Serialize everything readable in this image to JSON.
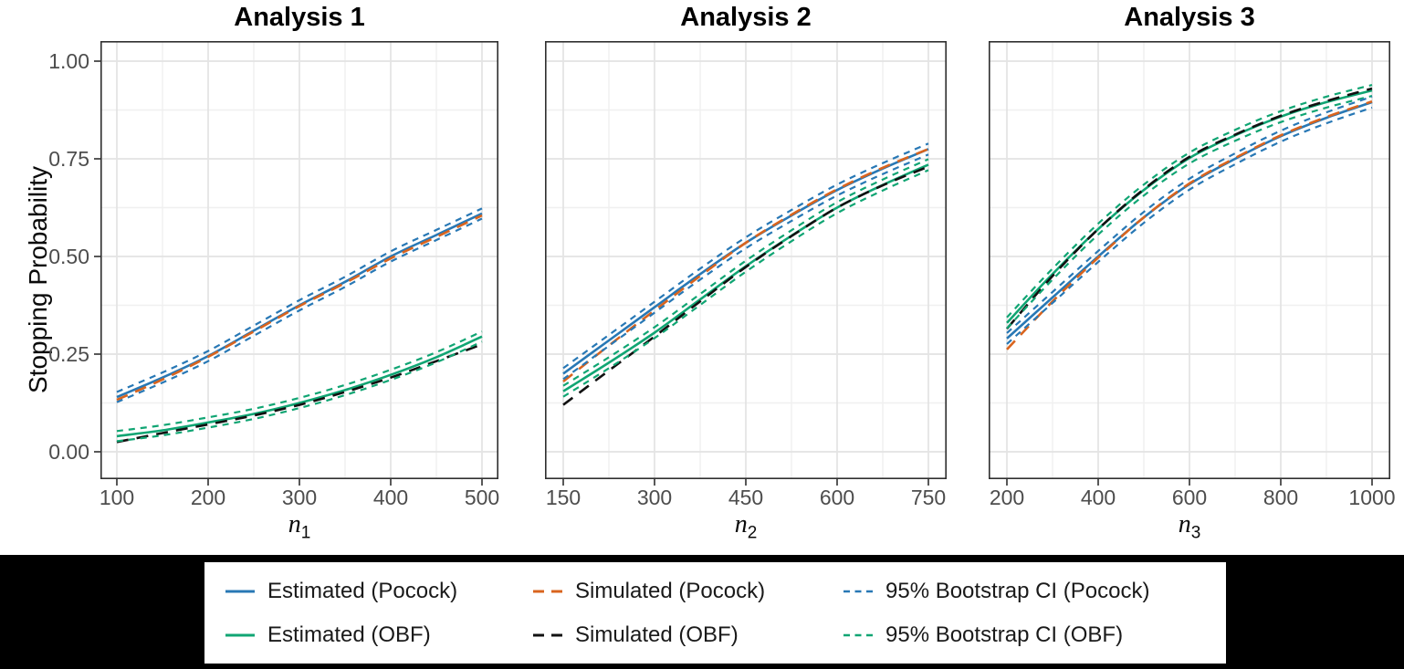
{
  "figure": {
    "background": "#ffffff",
    "footer_background": "#000000",
    "y_axis": {
      "label": "Stopping Probability",
      "ticks": [
        "1.00",
        "0.75",
        "0.50",
        "0.25",
        "0.00"
      ],
      "tick_values": [
        1.0,
        0.75,
        0.5,
        0.25,
        0.0
      ],
      "range": [
        0,
        1
      ]
    }
  },
  "colors": {
    "blue": "#2878b5",
    "orange": "#d9641e",
    "green": "#10a573",
    "black": "#111111",
    "grid_major": "#e3e3e3",
    "grid_minor": "#f0f0f0",
    "panel_border": "#2f2f2f",
    "tick_text": "#4d4d4d"
  },
  "chart_data": [
    {
      "type": "line",
      "title": "Analysis 1",
      "xlabel_base": "n",
      "xlabel_sub": "1",
      "ylabel": "Stopping Probability",
      "xlim": [
        100,
        500
      ],
      "ylim": [
        0,
        1
      ],
      "x_ticks": [
        100,
        200,
        300,
        400,
        500
      ],
      "x": [
        100,
        150,
        200,
        250,
        300,
        350,
        400,
        450,
        500
      ],
      "series": [
        {
          "name": "Estimated (Pocock)",
          "color": "blue",
          "style": "solid",
          "values": [
            0.14,
            0.19,
            0.245,
            0.31,
            0.375,
            0.435,
            0.5,
            0.555,
            0.61
          ]
        },
        {
          "name": "Simulated (Pocock)",
          "color": "orange",
          "style": "dash",
          "values": [
            0.133,
            0.185,
            0.243,
            0.308,
            0.373,
            0.432,
            0.495,
            0.55,
            0.605
          ]
        },
        {
          "name": "Estimated (OBF)",
          "color": "green",
          "style": "solid",
          "values": [
            0.04,
            0.055,
            0.075,
            0.097,
            0.125,
            0.158,
            0.197,
            0.242,
            0.295
          ]
        },
        {
          "name": "Simulated (OBF)",
          "color": "black",
          "style": "dash",
          "values": [
            0.025,
            0.048,
            0.07,
            0.093,
            0.12,
            0.153,
            0.19,
            0.232,
            0.275
          ]
        },
        {
          "name": "95% Bootstrap CI (Pocock)",
          "color": "blue",
          "style": "ci",
          "band_center": "Estimated (Pocock)",
          "band_halfwidth": 0.013
        },
        {
          "name": "95% Bootstrap CI (OBF)",
          "color": "green",
          "style": "ci",
          "band_center": "Estimated (OBF)",
          "band_halfwidth": 0.013
        }
      ]
    },
    {
      "type": "line",
      "title": "Analysis 2",
      "xlabel_base": "n",
      "xlabel_sub": "2",
      "ylabel": "Stopping Probability",
      "xlim": [
        150,
        750
      ],
      "ylim": [
        0,
        1
      ],
      "x_ticks": [
        150,
        300,
        450,
        600,
        750
      ],
      "x": [
        150,
        225,
        300,
        375,
        450,
        525,
        600,
        675,
        750
      ],
      "series": [
        {
          "name": "Estimated (Pocock)",
          "color": "blue",
          "style": "solid",
          "values": [
            0.2,
            0.285,
            0.37,
            0.455,
            0.535,
            0.605,
            0.67,
            0.725,
            0.775
          ]
        },
        {
          "name": "Simulated (Pocock)",
          "color": "orange",
          "style": "dash",
          "values": [
            0.18,
            0.272,
            0.362,
            0.45,
            0.535,
            0.607,
            0.672,
            0.727,
            0.775
          ]
        },
        {
          "name": "Estimated (OBF)",
          "color": "green",
          "style": "solid",
          "values": [
            0.155,
            0.228,
            0.305,
            0.39,
            0.475,
            0.553,
            0.625,
            0.683,
            0.735
          ]
        },
        {
          "name": "Simulated (OBF)",
          "color": "black",
          "style": "dash",
          "values": [
            0.12,
            0.208,
            0.295,
            0.385,
            0.473,
            0.552,
            0.625,
            0.682,
            0.73
          ]
        },
        {
          "name": "95% Bootstrap CI (Pocock)",
          "color": "blue",
          "style": "ci",
          "band_center": "Estimated (Pocock)",
          "band_halfwidth": 0.014
        },
        {
          "name": "95% Bootstrap CI (OBF)",
          "color": "green",
          "style": "ci",
          "band_center": "Estimated (OBF)",
          "band_halfwidth": 0.014
        }
      ]
    },
    {
      "type": "line",
      "title": "Analysis 3",
      "xlabel_base": "n",
      "xlabel_sub": "3",
      "ylabel": "Stopping Probability",
      "xlim": [
        200,
        1000
      ],
      "ylim": [
        0,
        1
      ],
      "x_ticks": [
        200,
        400,
        600,
        800,
        1000
      ],
      "x": [
        200,
        300,
        400,
        500,
        600,
        700,
        800,
        900,
        1000
      ],
      "series": [
        {
          "name": "Estimated (OBF)",
          "color": "green",
          "style": "solid",
          "values": [
            0.33,
            0.455,
            0.57,
            0.67,
            0.752,
            0.81,
            0.858,
            0.895,
            0.925
          ]
        },
        {
          "name": "Simulated (OBF)",
          "color": "black",
          "style": "dash",
          "values": [
            0.315,
            0.45,
            0.57,
            0.672,
            0.755,
            0.812,
            0.86,
            0.898,
            0.93
          ]
        },
        {
          "name": "Estimated (Pocock)",
          "color": "blue",
          "style": "solid",
          "values": [
            0.29,
            0.395,
            0.5,
            0.6,
            0.685,
            0.75,
            0.808,
            0.855,
            0.895
          ]
        },
        {
          "name": "Simulated (Pocock)",
          "color": "orange",
          "style": "dash",
          "values": [
            0.262,
            0.385,
            0.497,
            0.6,
            0.687,
            0.752,
            0.81,
            0.857,
            0.897
          ]
        },
        {
          "name": "95% Bootstrap CI (OBF)",
          "color": "green",
          "style": "ci",
          "band_center": "Estimated (OBF)",
          "band_halfwidth": 0.014
        },
        {
          "name": "95% Bootstrap CI (Pocock)",
          "color": "blue",
          "style": "ci",
          "band_center": "Estimated (Pocock)",
          "band_halfwidth": 0.014
        }
      ]
    }
  ],
  "legend": {
    "entries": [
      {
        "label": "Estimated (Pocock)",
        "color": "blue",
        "style": "solid"
      },
      {
        "label": "Simulated (Pocock)",
        "color": "orange",
        "style": "dash"
      },
      {
        "label": "95% Bootstrap CI (Pocock)",
        "color": "blue",
        "style": "ci"
      },
      {
        "label": "Estimated (OBF)",
        "color": "green",
        "style": "solid"
      },
      {
        "label": "Simulated (OBF)",
        "color": "black",
        "style": "dash"
      },
      {
        "label": "95% Bootstrap CI (OBF)",
        "color": "green",
        "style": "ci"
      }
    ]
  }
}
